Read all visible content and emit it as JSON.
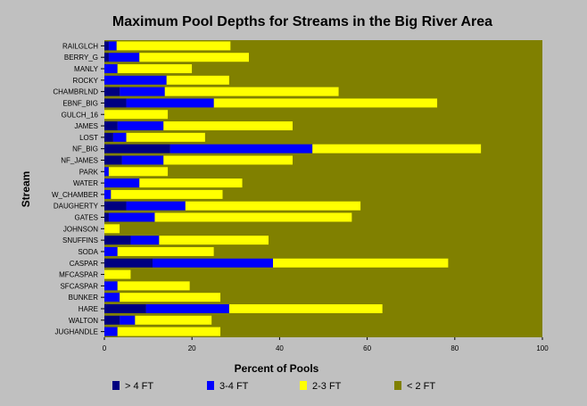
{
  "chart_data": {
    "type": "bar",
    "orientation": "horizontal",
    "stacked": true,
    "title": "Maximum Pool Depths for Streams in the Big River Area",
    "xlabel": "Percent of Pools",
    "ylabel": "Stream",
    "xlim": [
      0,
      100
    ],
    "x_ticks": [
      "0",
      "20",
      "40",
      "60",
      "80",
      "100"
    ],
    "grid": false,
    "legend_position": "bottom",
    "categories": [
      "RAILGLCH",
      "BERRY_G",
      "MANLY",
      "ROCKY",
      "CHAMBRLND",
      "EBNF_BIG",
      "GULCH_16",
      "JAMES",
      "LOST",
      "NF_BIG",
      "NF_JAMES",
      "PARK",
      "WATER",
      "W_CHAMBER",
      "DAUGHERTY",
      "GATES",
      "JOHNSON",
      "SNUFFINS",
      "SODA",
      "CASPAR",
      "MFCASPAR",
      "SFCASPAR",
      "BUNKER",
      "HARE",
      "WALTON",
      "JUGHANDLE"
    ],
    "series": [
      {
        "name": "> 4 FT",
        "color": "#000080",
        "values": [
          1,
          1,
          0,
          0,
          3.5,
          5,
          0,
          3,
          2,
          15,
          4,
          0,
          0,
          0,
          5,
          1,
          0,
          6,
          0,
          11,
          0,
          0,
          0,
          9.5,
          3.5,
          0
        ]
      },
      {
        "name": "3-4 FT",
        "color": "#0000ff",
        "values": [
          1.8,
          7,
          3,
          14.2,
          10.3,
          20,
          0,
          10.5,
          3,
          32.5,
          9.5,
          1,
          8,
          1.5,
          13.5,
          10.5,
          0,
          6.5,
          3,
          27.5,
          0,
          3,
          3.5,
          19,
          3.5,
          3
        ]
      },
      {
        "name": "2-3 FT",
        "color": "#ffff00",
        "values": [
          26,
          25,
          17,
          14.3,
          39.7,
          51,
          14.5,
          29.5,
          18,
          38.5,
          29.5,
          13.5,
          23.5,
          25.5,
          40,
          45,
          3.5,
          25,
          22,
          40,
          6,
          16.5,
          23,
          35,
          17.5,
          23.5
        ]
      },
      {
        "name": "< 2 FT",
        "color": "#808000",
        "values": [
          71.2,
          67,
          80,
          71.5,
          46.5,
          24,
          85.5,
          57,
          77,
          14,
          57,
          85.5,
          68.5,
          73,
          41.5,
          43.5,
          96.5,
          62.5,
          75,
          21.5,
          94,
          80.5,
          73.5,
          36.5,
          75.5,
          73.5
        ]
      }
    ]
  }
}
